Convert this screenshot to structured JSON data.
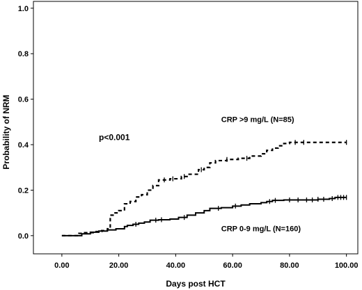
{
  "chart_data": {
    "type": "line",
    "title": "",
    "xlabel": "Days post HCT",
    "ylabel": "Probability of NRM",
    "xlim": [
      -10,
      104
    ],
    "ylim": [
      -0.08,
      1.03
    ],
    "x_ticks": [
      0,
      20,
      40,
      60,
      80,
      100
    ],
    "x_tick_labels": [
      "0.00",
      "20.00",
      "40.00",
      "60.00",
      "80.00",
      "100.00"
    ],
    "y_ticks": [
      0.0,
      0.2,
      0.4,
      0.6,
      0.8,
      1.0
    ],
    "y_tick_labels": [
      "0.0",
      "0.2",
      "0.4",
      "0.6",
      "0.8",
      "1.0"
    ],
    "grid": false,
    "annotations": [
      {
        "text": "p<0.001",
        "x": 13,
        "y": 0.42
      },
      {
        "text": "CRP >9 mg/L (N=85)",
        "x": 56,
        "y": 0.5
      },
      {
        "text": "CRP 0-9 mg/L (N=160)",
        "x": 56,
        "y": 0.02
      }
    ],
    "series": [
      {
        "name": "CRP >9 mg/L (N=85)",
        "style": "dashed",
        "x": [
          0,
          6,
          8,
          11,
          14,
          16,
          17,
          18,
          20,
          22,
          24,
          26,
          28,
          30,
          32,
          34,
          38,
          42,
          44,
          48,
          50,
          52,
          54,
          58,
          62,
          64,
          66,
          70,
          72,
          74,
          76,
          78,
          80,
          100
        ],
        "y": [
          0.0,
          0.01,
          0.013,
          0.018,
          0.022,
          0.03,
          0.09,
          0.1,
          0.11,
          0.14,
          0.15,
          0.17,
          0.18,
          0.2,
          0.22,
          0.245,
          0.25,
          0.26,
          0.27,
          0.29,
          0.3,
          0.32,
          0.33,
          0.335,
          0.34,
          0.34,
          0.35,
          0.36,
          0.375,
          0.385,
          0.395,
          0.405,
          0.41,
          0.41
        ],
        "censor_x": [
          36,
          39,
          43,
          49,
          58,
          65,
          82,
          85,
          100
        ]
      },
      {
        "name": "CRP 0-9 mg/L (N=160)",
        "style": "solid",
        "x": [
          0,
          7,
          10,
          13,
          16,
          19,
          22,
          23,
          25,
          27,
          29,
          31,
          34,
          38,
          41,
          44,
          47,
          50,
          52,
          56,
          60,
          63,
          66,
          70,
          72,
          74,
          78,
          84,
          90,
          94,
          96,
          100
        ],
        "y": [
          0.0,
          0.008,
          0.015,
          0.02,
          0.025,
          0.03,
          0.04,
          0.045,
          0.05,
          0.055,
          0.06,
          0.068,
          0.07,
          0.073,
          0.08,
          0.09,
          0.1,
          0.11,
          0.12,
          0.123,
          0.13,
          0.135,
          0.14,
          0.145,
          0.15,
          0.155,
          0.157,
          0.157,
          0.16,
          0.163,
          0.168,
          0.168
        ],
        "censor_x": [
          26,
          33,
          35,
          43,
          55,
          61,
          73,
          75,
          80,
          83,
          86,
          88,
          90,
          92,
          95,
          97,
          98,
          99,
          100
        ]
      }
    ]
  }
}
